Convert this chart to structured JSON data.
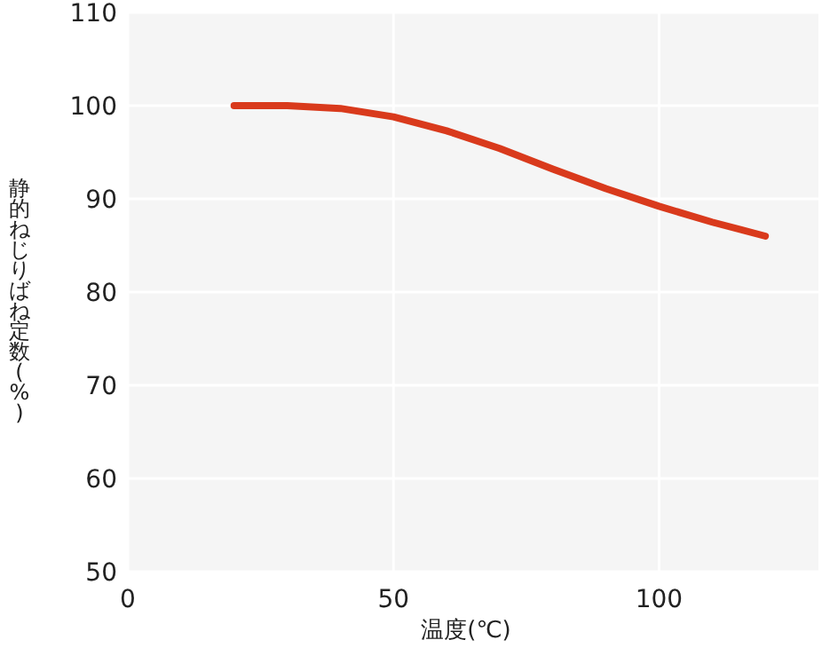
{
  "chart_data": {
    "type": "line",
    "xlabel": "温度(℃)",
    "ylabel": "静的ねじりばね定数(%)",
    "x": [
      20,
      30,
      40,
      50,
      60,
      70,
      80,
      90,
      100,
      110,
      120
    ],
    "series": [
      {
        "color": "#d93a1c",
        "values": [
          100,
          100,
          99.7,
          98.8,
          97.3,
          95.4,
          93.2,
          91.1,
          89.2,
          87.5,
          86.0
        ]
      }
    ],
    "xlim": [
      0,
      130
    ],
    "xticks": [
      0,
      50,
      100
    ],
    "ylim": [
      50,
      110
    ],
    "yticks": [
      50,
      60,
      70,
      80,
      90,
      100,
      110
    ],
    "grid": true,
    "marker": "none",
    "line_style": "solid"
  }
}
